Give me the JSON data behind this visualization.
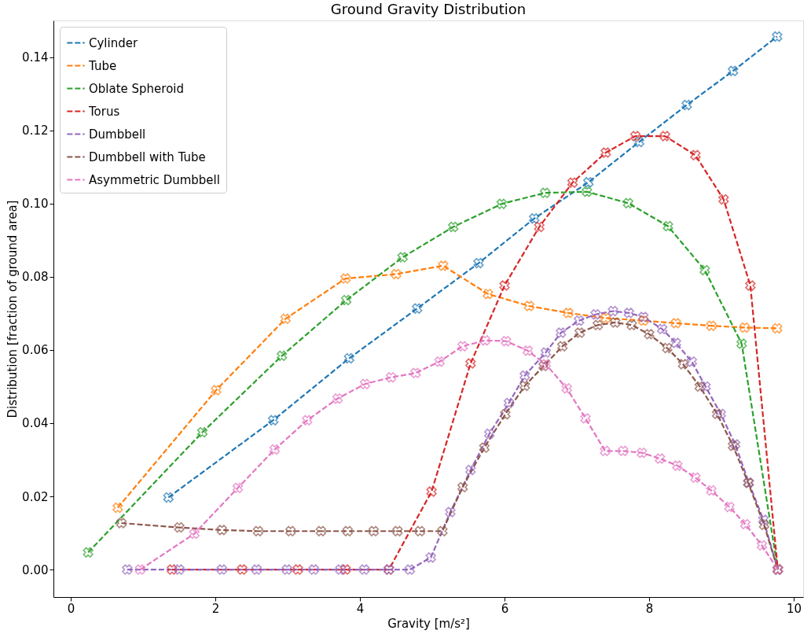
{
  "chart_data": {
    "type": "line",
    "title": "Ground Gravity Distribution",
    "xlabel": "Gravity [m/s²]",
    "ylabel": "Distribution [fraction of ground area]",
    "xlim": [
      -0.24,
      10.13
    ],
    "ylim": [
      -0.0075,
      0.15
    ],
    "xticks": [
      0,
      2,
      4,
      6,
      8,
      10
    ],
    "yticks": [
      {
        "value": 0,
        "label": "0.00"
      },
      {
        "value": 0.02,
        "label": "0.02"
      },
      {
        "value": 0.04,
        "label": "0.04"
      },
      {
        "value": 0.06,
        "label": "0.06"
      },
      {
        "value": 0.08,
        "label": "0.08"
      },
      {
        "value": 0.1,
        "label": "0.10"
      },
      {
        "value": 0.12,
        "label": "0.12"
      },
      {
        "value": 0.14,
        "label": "0.14"
      }
    ],
    "grid": false,
    "legend": "top left",
    "marker": "cross",
    "line_style": "dashed",
    "series": [
      {
        "name": "Cylinder",
        "color": "#1f77b4",
        "x": [
          1.35,
          2.8,
          3.85,
          4.79,
          5.64,
          6.41,
          7.16,
          7.86,
          8.52,
          9.16,
          9.77
        ],
        "values": [
          0.0197,
          0.0408,
          0.0577,
          0.0713,
          0.0837,
          0.0959,
          0.1058,
          0.1168,
          0.1269,
          0.1362,
          0.1456
        ]
      },
      {
        "name": "Tube",
        "color": "#ff7f0e",
        "x": [
          0.65,
          2.01,
          2.97,
          3.8,
          4.5,
          5.15,
          5.77,
          6.34,
          6.88,
          7.4,
          7.92,
          8.37,
          8.86,
          9.32,
          9.77
        ],
        "values": [
          0.0169,
          0.049,
          0.0685,
          0.0795,
          0.0807,
          0.083,
          0.0753,
          0.072,
          0.0701,
          0.0687,
          0.068,
          0.0673,
          0.0666,
          0.0661,
          0.0659
        ]
      },
      {
        "name": "Oblate Spheroid",
        "color": "#2ca02c",
        "x": [
          0.24,
          1.82,
          2.92,
          3.81,
          4.59,
          5.29,
          5.96,
          6.56,
          7.14,
          7.71,
          8.26,
          8.77,
          9.28,
          9.78
        ],
        "values": [
          0.0047,
          0.0375,
          0.0584,
          0.0736,
          0.0853,
          0.0936,
          0.0999,
          0.1029,
          0.1032,
          0.1001,
          0.0938,
          0.0818,
          0.0617,
          0
        ]
      },
      {
        "name": "Torus",
        "color": "#d62728",
        "x": [
          1.4,
          2.37,
          3.14,
          3.8,
          4.4,
          4.99,
          5.53,
          6.0,
          6.48,
          6.94,
          7.4,
          7.81,
          8.22,
          8.64,
          9.03,
          9.4,
          9.78
        ],
        "values": [
          0,
          0,
          0,
          0,
          0,
          0.0213,
          0.0563,
          0.0776,
          0.0936,
          0.1057,
          0.1139,
          0.1184,
          0.1184,
          0.1132,
          0.1011,
          0.0776,
          0
        ]
      },
      {
        "name": "Dumbbell",
        "color": "#9467bd",
        "x": [
          0.78,
          1.5,
          2.09,
          2.57,
          2.99,
          3.36,
          3.73,
          4.06,
          4.4,
          4.69,
          4.98,
          5.25,
          5.53,
          5.79,
          6.06,
          6.28,
          6.57,
          6.78,
          7.03,
          7.26,
          7.5,
          7.72,
          7.92,
          8.18,
          8.37,
          8.59,
          8.78,
          8.99,
          9.19,
          9.38,
          9.58,
          9.78
        ],
        "values": [
          0,
          0,
          0,
          0,
          0,
          0,
          0,
          0,
          0,
          0,
          0.0033,
          0.0157,
          0.0272,
          0.0371,
          0.0455,
          0.053,
          0.0593,
          0.0647,
          0.068,
          0.0697,
          0.0706,
          0.0701,
          0.069,
          0.0657,
          0.0619,
          0.0568,
          0.05,
          0.0425,
          0.0342,
          0.0237,
          0.0136,
          0
        ]
      },
      {
        "name": "Dumbbell with Tube",
        "color": "#8c564b",
        "x": [
          0.7,
          1.5,
          2.09,
          2.59,
          3.04,
          3.46,
          3.83,
          4.19,
          4.52,
          4.83,
          5.14,
          5.42,
          5.72,
          6.01,
          6.28,
          6.54,
          6.8,
          7.04,
          7.29,
          7.53,
          7.76,
          8.0,
          8.25,
          8.47,
          8.7,
          8.94,
          9.16,
          9.37,
          9.59,
          9.78
        ],
        "values": [
          0.0127,
          0.0115,
          0.0108,
          0.0105,
          0.0105,
          0.0105,
          0.0105,
          0.0105,
          0.0105,
          0.0105,
          0.0105,
          0.0225,
          0.0333,
          0.0424,
          0.0502,
          0.0556,
          0.061,
          0.0647,
          0.0668,
          0.0675,
          0.0668,
          0.0643,
          0.0605,
          0.0561,
          0.05,
          0.0425,
          0.0338,
          0.0237,
          0.0122,
          0
        ]
      },
      {
        "name": "Asymmetric Dumbbell",
        "color": "#e377c2",
        "x": [
          0.96,
          1.71,
          2.31,
          2.82,
          3.27,
          3.69,
          4.07,
          4.43,
          4.77,
          5.1,
          5.42,
          5.73,
          6.02,
          6.32,
          6.57,
          6.86,
          7.12,
          7.39,
          7.64,
          7.9,
          8.15,
          8.39,
          8.64,
          8.86,
          9.11,
          9.33,
          9.56,
          9.78
        ],
        "values": [
          0,
          0.0098,
          0.0223,
          0.0328,
          0.0408,
          0.0467,
          0.0507,
          0.0525,
          0.0537,
          0.0568,
          0.061,
          0.0626,
          0.0624,
          0.0598,
          0.0561,
          0.0495,
          0.0413,
          0.0324,
          0.0324,
          0.0319,
          0.0303,
          0.0284,
          0.0251,
          0.0216,
          0.0171,
          0.0124,
          0.0066,
          0
        ]
      }
    ]
  }
}
